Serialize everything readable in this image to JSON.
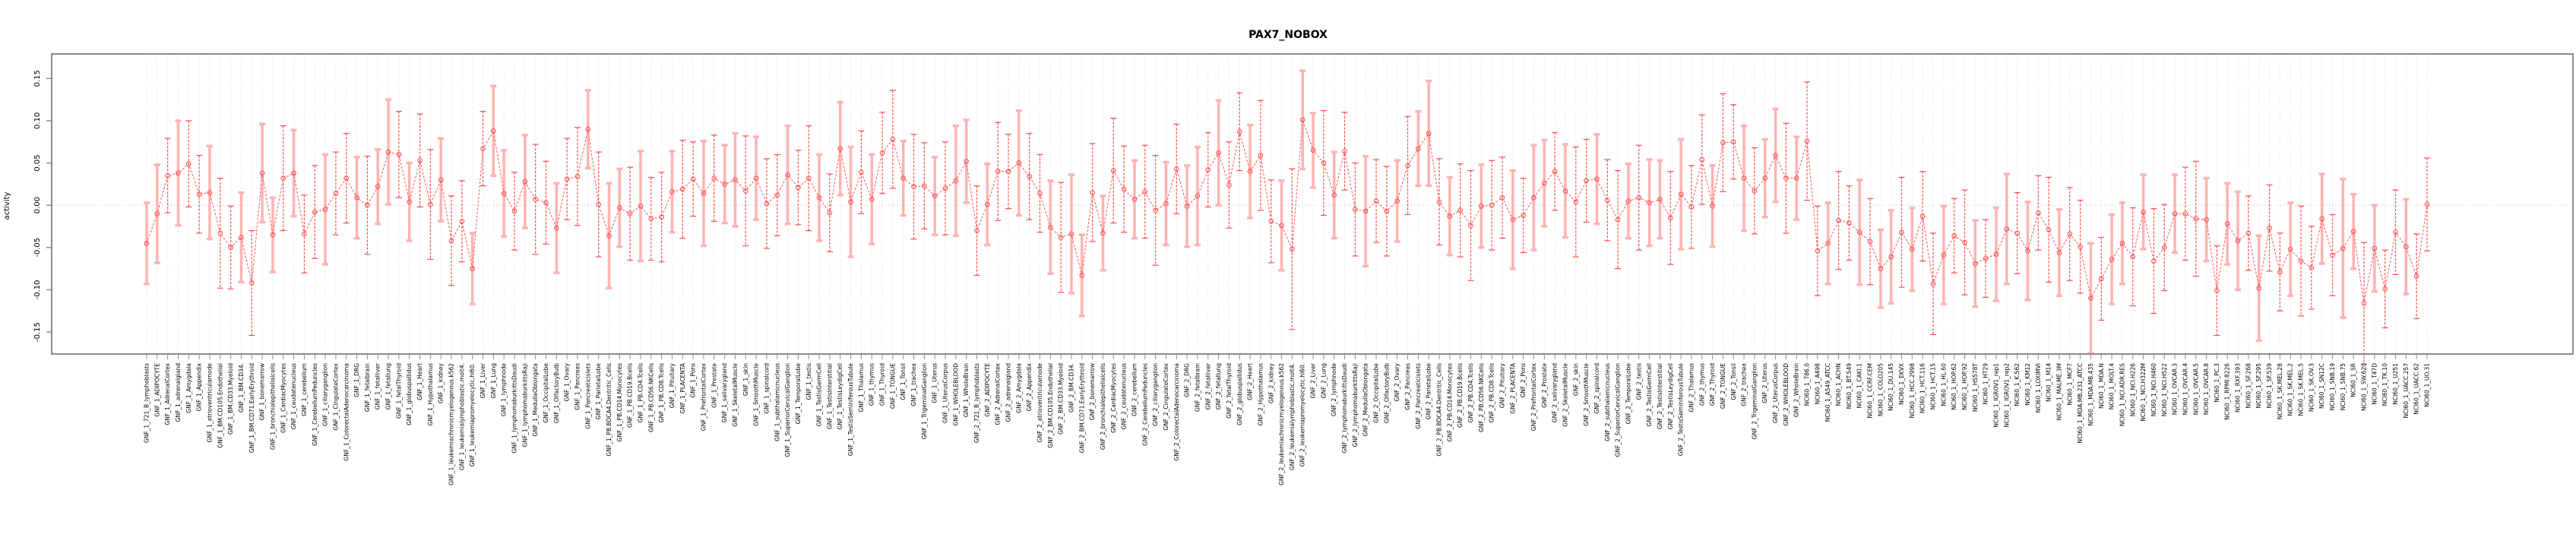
{
  "page": {
    "title": "PAX7_NOBOX"
  },
  "chart_data": {
    "type": "line",
    "subtype": "points-with-error-bars",
    "title": "PAX7_NOBOX",
    "xlabel": "",
    "ylabel": "activity",
    "legend": "none",
    "grid": "vertical-dotted-per-category",
    "zero_line": "dotted",
    "yticks": [
      0.15,
      0.1,
      0.05,
      0.0,
      -0.05,
      -0.1,
      -0.15
    ],
    "ylim": [
      -0.176,
      0.179
    ],
    "colors": {
      "point": "#ff5555",
      "line": "#ff5555",
      "error_bar_dark": "#ff4d4d",
      "error_bar_light": "#ffb3b3",
      "grid": "#d9d9d9",
      "box_border": "#8c8c8c",
      "text": "#000000"
    },
    "categories": [
      "GNF_1_721_B_lymphoblasts",
      "GNF_1_ADIPOCYTE",
      "GNF_1_AdrenalCortex",
      "GNF_1_adrenalgland",
      "GNF_1_Amygdala",
      "GNF_1_Appendix",
      "GNF_1_atrioventricularnode",
      "GNF_1_BM.CD105.Endothelial",
      "GNF_1_BM.CD33.Myeloid",
      "GNF_1_BM.CD34.",
      "GNF_1_BM.CD71.EarlyErythroid",
      "GNF_1_bonemarrow",
      "GNF_1_bronchialepithelialcells",
      "GNF_1_CardiacMyocytes",
      "GNF_1_caudatenucleus",
      "GNF_1_cerebellum",
      "GNF_1_CerebellumPeduncles",
      "GNF_1_ciliaryganglion",
      "GNF_1_CingulateCortex",
      "GNF_1_ColorectalAdenocarcinoma",
      "GNF_1_DRG",
      "GNF_1_fetalbrain",
      "GNF_1_fetalliver",
      "GNF_1_fetallung",
      "GNF_1_fetalThyroid",
      "GNF_1_globuspallidus",
      "GNF_1_Heart",
      "GNF_1_Hypothalamus",
      "GNF_1_kidney",
      "GNF_1_leukemiachronicmyelogenous.k562",
      "GNF_1_leukemialymphoblastic.molt4.",
      "GNF_1_leukemiapromyelocytic.hl60.",
      "GNF_1_Liver",
      "GNF_1_Lung",
      "GNF_1_lymphnode",
      "GNF_1_lymphomaburkittsDaudi",
      "GNF_1_lymphomaburkittsRaji",
      "GNF_1_MedullaOblongata",
      "GNF_1_OccipitalLobe",
      "GNF_1_OlfactoryBulb",
      "GNF_1_Ovary",
      "GNF_1_Pancreas",
      "GNF_1_Pancreaticislets",
      "GNF_1_ParietalLobe",
      "GNF_1_PB.BDCA4.Dentritic_Cells",
      "GNF_1_PB.CD14.Monocytes",
      "GNF_1_PB.CD19.Bcells",
      "GNF_1_PB.CD4.Tcells",
      "GNF_1_PB.CD56.NKCells",
      "GNF_1_PB.CD8.Tcells",
      "GNF_1_Pituitary",
      "GNF_1_PLACENTA",
      "GNF_1_Pons",
      "GNF_1_PrefrontalCortex",
      "GNF_1_Prostate",
      "GNF_1_salivarygland",
      "GNF_1_SkeletalMuscle",
      "GNF_1_skin",
      "GNF_1_SmoothMuscle",
      "GNF_1_spinalcord",
      "GNF_1_subthalamicnucleus",
      "GNF_1_SuperiorCervicalGanglion",
      "GNF_1_TemporalLobe",
      "GNF_1_testis",
      "GNF_1_TestisGermCell",
      "GNF_1_TestisInterstitial",
      "GNF_1_TestisLeydigCell",
      "GNF_1_TestisSeminiferousTubule",
      "GNF_1_Thalamus",
      "GNF_1_thymus",
      "GNF_1_Thyroid",
      "GNF_1_TONGUE",
      "GNF_1_Tonsil",
      "GNF_1_trachea",
      "GNF_1_TrigeminalGanglion",
      "GNF_1_Uterus",
      "GNF_1_UterusCorpus",
      "GNF_1_WHOLEBLOOD",
      "GNF_1_WholeBrain",
      "GNF_2_721_B_lymphoblasts",
      "GNF_2_ADIPOCYTE",
      "GNF_2_AdrenalCortex",
      "GNF_2_adrenalgland",
      "GNF_2_Amygdala",
      "GNF_2_Appendix",
      "GNF_2_atrioventricularnode",
      "GNF_2_BM.CD105.Endothelial",
      "GNF_2_BM.CD33.Myeloid",
      "GNF_2_BM.CD34.",
      "GNF_2_BM.CD71.EarlyErythroid",
      "GNF_2_bonemarrow",
      "GNF_2_bronchialepithelialcells",
      "GNF_2_CardiacMyocytes",
      "GNF_2_caudatenucleus",
      "GNF_2_cerebellum",
      "GNF_2_CerebellumPeduncles",
      "GNF_2_ciliaryganglion",
      "GNF_2_CingulateCortex",
      "GNF_2_ColorectalAdenocarcinoma",
      "GNF_2_DRG",
      "GNF_2_fetalbrain",
      "GNF_2_fetalliver",
      "GNF_2_fetallung",
      "GNF_2_fetalThyroid",
      "GNF_2_globuspallidus",
      "GNF_2_Heart",
      "GNF_2_Hypothalamus",
      "GNF_2_kidney",
      "GNF_2_leukemiachronicmyelogenous.k562",
      "GNF_2_leukemialymphoblastic.molt4.",
      "GNF_2_leukemiapromyelocytic.hl60.",
      "GNF_2_Liver",
      "GNF_2_Lung",
      "GNF_2_lymphnode",
      "GNF_2_lymphomaburkittsDaudi",
      "GNF_2_lymphomaburkittsRaji",
      "GNF_2_MedullaOblongata",
      "GNF_2_OccipitalLobe",
      "GNF_2_OlfactoryBulb",
      "GNF_2_Ovary",
      "GNF_2_Pancreas",
      "GNF_2_Pancreaticislets",
      "GNF_2_ParietalLobe",
      "GNF_2_PB.BDCA4.Dentritic_Cells",
      "GNF_2_PB.CD14.Monocytes",
      "GNF_2_PB.CD19.Bcells",
      "GNF_2_PB.CD4.Tcells",
      "GNF_2_PB.CD56.NKCells",
      "GNF_2_PB.CD8.Tcells",
      "GNF_2_Pituitary",
      "GNF_2_PLACENTA",
      "GNF_2_Pons",
      "GNF_2_PrefrontalCortex",
      "GNF_2_Prostate",
      "GNF_2_salivarygland",
      "GNF_2_SkeletalMuscle",
      "GNF_2_skin",
      "GNF_2_SmoothMuscle",
      "GNF_2_spinalcord",
      "GNF_2_subthalamicnucleus",
      "GNF_2_SuperiorCervicalGanglion",
      "GNF_2_TemporalLobe",
      "GNF_2_testis",
      "GNF_2_TestisGermCell",
      "GNF_2_TestisInterstitial",
      "GNF_2_TestisLeydigCell",
      "GNF_2_TestisSeminiferousTubule",
      "GNF_2_Thalamus",
      "GNF_2_thymus",
      "GNF_2_Thyroid",
      "GNF_2_TONGUE",
      "GNF_2_Tonsil",
      "GNF_2_trachea",
      "GNF_2_TrigeminalGanglion",
      "GNF_2_Uterus",
      "GNF_2_UterusCorpus",
      "GNF_2_WHOLEBLOOD",
      "GNF_2_WholeBrain",
      "NCI60_1_786.0",
      "NCI60_1_A498",
      "NCI60_1_A549_ATCC",
      "NCI60_1_ACHN",
      "NCI60_1_BT.549",
      "NCI60_1_CAKI.1",
      "NCI60_1_CCRF.CEM",
      "NCI60_1_COLO205",
      "NCI60_1_DU.145",
      "NCI60_1_EKVX",
      "NCI60_1_HCC.2998",
      "NCI60_1_HCT.116",
      "NCI60_1_HCT.15",
      "NCI60_1_HL.60",
      "NCI60_1_HOP.62",
      "NCI60_1_HOP.92",
      "NCI60_1_HS578T",
      "NCI60_1_HT29",
      "NCI60_1_IGROV1_rep1",
      "NCI60_1_IGROV1_rep2",
      "NCI60_1_K.562",
      "NCI60_1_KM12",
      "NCI60_1_LOXIMVI",
      "NCI60_1_M14",
      "NCI60_1_MALME.3M",
      "NCI60_1_MCF7",
      "NCI60_1_MDA.MB.231_ATCC",
      "NCI60_1_MDA.MB.435",
      "NCI60_1_MDA.N",
      "NCI60_1_MOLT.4",
      "NCI60_1_NCI.ADR.RES",
      "NCI60_1_NCI.H226",
      "NCI60_1_NCI.H322M",
      "NCI60_1_NCI.H460",
      "NCI60_1_NCI.H522",
      "NCI60_1_OVCAR.3",
      "NCI60_1_OVCAR.4",
      "NCI60_1_OVCAR.5",
      "NCI60_1_OVCAR.8",
      "NCI60_1_PC.3",
      "NCI60_1_RPMI.8226",
      "NCI60_1_RXF.393",
      "NCI60_1_SF.268",
      "NCI60_1_SF.295",
      "NCI60_1_SF.539",
      "NCI60_1_SK.MEL.28",
      "NCI60_1_SK.MEL.2",
      "NCI60_1_SK.MEL.5",
      "NCI60_1_SK.OV.3",
      "NCI60_1_SN12C",
      "NCI60_1_SNB.19",
      "NCI60_1_SNB.75",
      "NCI60_1_SR",
      "NCI60_1_SW.620",
      "NCI60_1_T47D",
      "NCI60_1_TK.10",
      "NCI60_1_U251",
      "NCI60_1_UACC.257",
      "NCI60_1_UACC.62",
      "NCI60_1_UO.31"
    ],
    "values": [
      -0.045,
      -0.01,
      0.035,
      0.038,
      0.049,
      0.013,
      0.015,
      -0.033,
      -0.05,
      -0.038,
      -0.092,
      0.038,
      -0.035,
      0.032,
      0.038,
      -0.034,
      -0.008,
      -0.005,
      0.014,
      0.032,
      0.009,
      0.0,
      0.022,
      0.063,
      0.06,
      0.004,
      0.053,
      0.001,
      0.03,
      -0.042,
      -0.019,
      -0.075,
      0.067,
      0.088,
      0.014,
      -0.007,
      0.028,
      0.007,
      0.003,
      -0.027,
      0.031,
      0.034,
      0.09,
      0.001,
      -0.036,
      -0.003,
      -0.01,
      -0.001,
      -0.016,
      -0.014,
      0.016,
      0.019,
      0.031,
      0.014,
      0.032,
      0.025,
      0.03,
      0.017,
      0.032,
      0.002,
      0.012,
      0.036,
      0.021,
      0.032,
      0.009,
      -0.009,
      0.067,
      0.004,
      0.039,
      0.007,
      0.062,
      0.078,
      0.032,
      0.022,
      0.023,
      0.011,
      0.02,
      0.029,
      0.052,
      -0.03,
      0.001,
      0.04,
      0.04,
      0.05,
      0.034,
      0.014,
      -0.026,
      -0.038,
      -0.034,
      -0.083,
      0.015,
      -0.033,
      0.041,
      0.019,
      0.007,
      0.016,
      -0.006,
      0.002,
      0.043,
      -0.001,
      0.011,
      0.042,
      0.062,
      0.024,
      0.087,
      0.04,
      0.059,
      -0.019,
      -0.024,
      -0.052,
      0.101,
      0.065,
      0.05,
      0.012,
      0.064,
      -0.005,
      -0.007,
      0.005,
      -0.007,
      0.005,
      0.047,
      0.067,
      0.085,
      0.004,
      -0.013,
      -0.006,
      -0.024,
      -0.001,
      0.0,
      0.009,
      -0.017,
      -0.012,
      0.009,
      0.026,
      0.04,
      0.017,
      0.004,
      0.029,
      0.031,
      0.006,
      -0.017,
      0.005,
      0.009,
      0.003,
      0.007,
      -0.015,
      0.013,
      -0.002,
      0.054,
      -0.001,
      0.074,
      0.075,
      0.032,
      0.017,
      0.032,
      0.059,
      0.032,
      0.032,
      0.076,
      -0.054,
      -0.045,
      -0.018,
      -0.021,
      -0.032,
      -0.043,
      -0.075,
      -0.061,
      -0.032,
      -0.052,
      -0.013,
      -0.093,
      -0.059,
      -0.036,
      -0.044,
      -0.069,
      -0.063,
      -0.058,
      -0.028,
      -0.033,
      -0.054,
      -0.009,
      -0.029,
      -0.056,
      -0.034,
      -0.049,
      -0.11,
      -0.087,
      -0.064,
      -0.045,
      -0.061,
      -0.008,
      -0.066,
      -0.05,
      -0.01,
      -0.01,
      -0.016,
      -0.017,
      -0.101,
      -0.022,
      -0.042,
      -0.033,
      -0.098,
      -0.027,
      -0.079,
      -0.052,
      -0.066,
      -0.074,
      -0.016,
      -0.059,
      -0.051,
      -0.031,
      -0.116,
      -0.051,
      -0.099,
      -0.032,
      -0.049,
      -0.084,
      0.001
    ],
    "err": [
      0.048,
      0.058,
      0.044,
      0.062,
      0.051,
      0.046,
      0.055,
      0.065,
      0.049,
      0.053,
      0.062,
      0.058,
      0.044,
      0.062,
      0.051,
      0.046,
      0.055,
      0.065,
      0.049,
      0.053,
      0.048,
      0.058,
      0.044,
      0.062,
      0.051,
      0.046,
      0.055,
      0.065,
      0.049,
      0.053,
      0.048,
      0.042,
      0.044,
      0.053,
      0.051,
      0.046,
      0.055,
      0.065,
      0.049,
      0.053,
      0.048,
      0.058,
      0.046,
      0.062,
      0.062,
      0.046,
      0.055,
      0.065,
      0.049,
      0.053,
      0.048,
      0.058,
      0.044,
      0.062,
      0.051,
      0.046,
      0.055,
      0.065,
      0.049,
      0.053,
      0.048,
      0.058,
      0.044,
      0.062,
      0.051,
      0.046,
      0.055,
      0.065,
      0.049,
      0.053,
      0.048,
      0.058,
      0.044,
      0.062,
      0.051,
      0.046,
      0.055,
      0.065,
      0.049,
      0.053,
      0.048,
      0.058,
      0.044,
      0.062,
      0.051,
      0.046,
      0.055,
      0.065,
      0.07,
      0.048,
      0.058,
      0.044,
      0.062,
      0.051,
      0.046,
      0.055,
      0.065,
      0.049,
      0.053,
      0.048,
      0.058,
      0.044,
      0.062,
      0.051,
      0.046,
      0.055,
      0.065,
      0.049,
      0.053,
      0.095,
      0.058,
      0.044,
      0.062,
      0.051,
      0.046,
      0.055,
      0.065,
      0.049,
      0.053,
      0.048,
      0.058,
      0.044,
      0.062,
      0.051,
      0.046,
      0.055,
      0.065,
      0.049,
      0.053,
      0.048,
      0.058,
      0.044,
      0.062,
      0.051,
      0.046,
      0.055,
      0.065,
      0.049,
      0.053,
      0.048,
      0.058,
      0.044,
      0.062,
      0.051,
      0.046,
      0.055,
      0.065,
      0.049,
      0.053,
      0.048,
      0.058,
      0.044,
      0.062,
      0.051,
      0.046,
      0.055,
      0.065,
      0.049,
      0.07,
      0.053,
      0.048,
      0.058,
      0.044,
      0.062,
      0.051,
      0.046,
      0.055,
      0.065,
      0.049,
      0.053,
      0.06,
      0.058,
      0.044,
      0.062,
      0.051,
      0.046,
      0.055,
      0.065,
      0.048,
      0.058,
      0.044,
      0.062,
      0.051,
      0.055,
      0.055,
      0.065,
      0.049,
      0.053,
      0.048,
      0.058,
      0.044,
      0.062,
      0.051,
      0.046,
      0.055,
      0.068,
      0.049,
      0.053,
      0.048,
      0.058,
      0.044,
      0.062,
      0.051,
      0.046,
      0.055,
      0.065,
      0.049,
      0.053,
      0.048,
      0.082,
      0.044,
      0.072,
      0.051,
      0.046,
      0.05,
      0.056,
      0.05,
      0.055
    ]
  }
}
